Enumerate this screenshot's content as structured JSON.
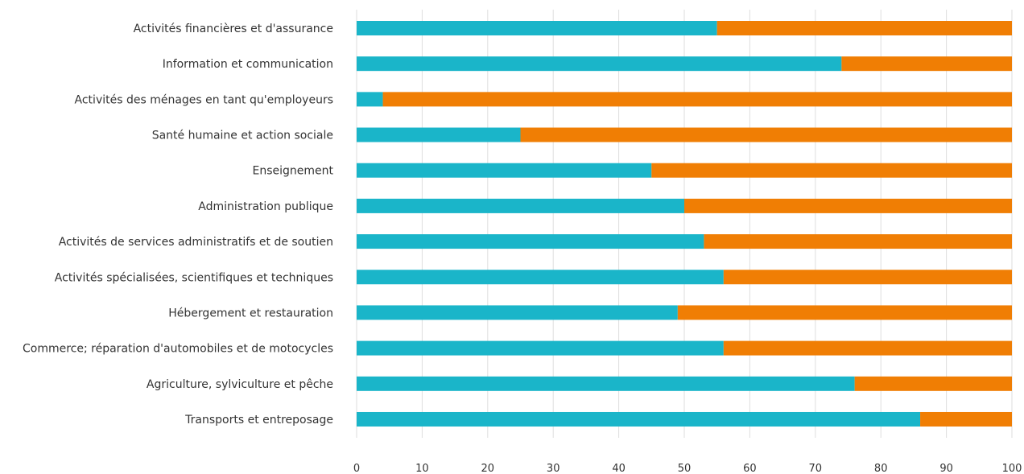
{
  "chart_data": {
    "type": "bar",
    "orientation": "horizontal",
    "stacked": true,
    "categories": [
      "Activités financières et d'assurance",
      "Information et communication",
      "Activités des ménages en tant qu'employeurs",
      "Santé humaine et action sociale",
      "Enseignement",
      "Administration publique",
      "Activités de services administratifs et de soutien",
      "Activités spécialisées, scientifiques et techniques",
      "Hébergement et restauration",
      "Commerce; réparation d'automobiles et de motocycles",
      "Agriculture, sylviculture et pêche",
      "Transports et entreposage"
    ],
    "series": [
      {
        "color": "#1ab5c9",
        "values": [
          55,
          74,
          4,
          25,
          45,
          50,
          53,
          56,
          49,
          56,
          76,
          86
        ]
      },
      {
        "color": "#f07e04",
        "values": [
          45,
          26,
          96,
          75,
          55,
          50,
          47,
          44,
          51,
          44,
          24,
          14
        ]
      }
    ],
    "xlim": [
      0,
      100
    ],
    "xticks": [
      "0",
      "10",
      "20",
      "30",
      "40",
      "50",
      "60",
      "70",
      "80",
      "90",
      "100"
    ],
    "grid": true,
    "legend": false
  }
}
